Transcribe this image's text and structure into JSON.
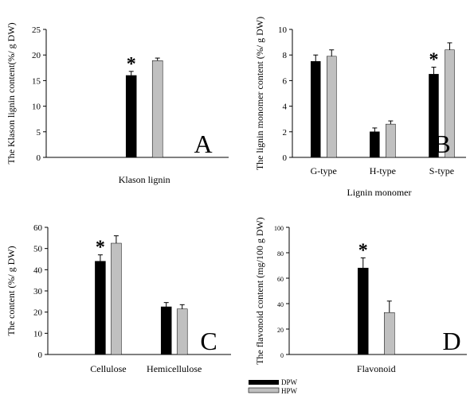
{
  "legend": {
    "entries": [
      {
        "label": "DPW",
        "color": "#000000"
      },
      {
        "label": "HPW",
        "color": "#c0c0c0"
      }
    ],
    "placement": "bottom-center"
  },
  "chart_data": [
    {
      "panel": "A",
      "type": "bar",
      "ylabel": "The Klason lignin content(%/ g DW)",
      "xlabel": "",
      "categories": [
        "Klason lignin"
      ],
      "ylim": [
        0,
        25
      ],
      "yticks": [
        0,
        5,
        10,
        15,
        20,
        25
      ],
      "series": [
        {
          "name": "DPW",
          "values": [
            16.0
          ],
          "errors": [
            0.8
          ],
          "color": "#000000"
        },
        {
          "name": "HPW",
          "values": [
            18.9
          ],
          "errors": [
            0.5
          ],
          "color": "#c0c0c0"
        }
      ],
      "annotations": [
        "*"
      ],
      "grid": false
    },
    {
      "panel": "B",
      "type": "bar",
      "ylabel": "The lignin monomer content (%/ g DW)",
      "xlabel": "Lignin monomer",
      "categories": [
        "G-type",
        "H-type",
        "S-type"
      ],
      "ylim": [
        0,
        10
      ],
      "yticks": [
        0,
        2,
        4,
        6,
        8,
        10
      ],
      "series": [
        {
          "name": "DPW",
          "values": [
            7.5,
            2.0,
            6.5
          ],
          "errors": [
            0.5,
            0.3,
            0.55
          ],
          "color": "#000000"
        },
        {
          "name": "HPW",
          "values": [
            7.9,
            2.6,
            8.4
          ],
          "errors": [
            0.5,
            0.25,
            0.55
          ],
          "color": "#c0c0c0"
        }
      ],
      "annotations": [
        "*"
      ],
      "grid": false
    },
    {
      "panel": "C",
      "type": "bar",
      "ylabel": "The content (%/ g DW)",
      "xlabel": "",
      "categories": [
        "Cellulose",
        "Hemicellulose"
      ],
      "ylim": [
        0,
        60
      ],
      "yticks": [
        0,
        10,
        20,
        30,
        40,
        50,
        60
      ],
      "series": [
        {
          "name": "DPW",
          "values": [
            44,
            22.5
          ],
          "errors": [
            3,
            2
          ],
          "color": "#000000"
        },
        {
          "name": "HPW",
          "values": [
            52.5,
            21.5
          ],
          "errors": [
            3.5,
            2
          ],
          "color": "#c0c0c0"
        }
      ],
      "annotations": [
        "*"
      ],
      "grid": false
    },
    {
      "panel": "D",
      "type": "bar",
      "ylabel": "The flavonoid content (mg/100 g DW)",
      "xlabel": "",
      "categories": [
        "Flavonoid"
      ],
      "ylim": [
        0,
        100
      ],
      "yticks": [
        0,
        20,
        40,
        60,
        80,
        100
      ],
      "series": [
        {
          "name": "DPW",
          "values": [
            68
          ],
          "errors": [
            8
          ],
          "color": "#000000"
        },
        {
          "name": "HPW",
          "values": [
            33
          ],
          "errors": [
            9
          ],
          "color": "#c0c0c0"
        }
      ],
      "annotations": [
        "*"
      ],
      "grid": false
    }
  ]
}
